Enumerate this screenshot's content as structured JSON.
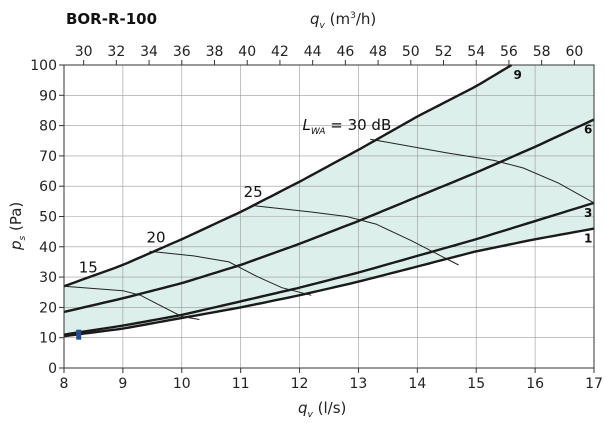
{
  "chart_data": {
    "type": "line",
    "title": "BOR-R-100",
    "xlabel": {
      "symbol": "q",
      "subscript": "v",
      "unit": " (l/s)"
    },
    "x2label": {
      "symbol": "q",
      "subscript": "v",
      "unit_pre": " (m",
      "unit_sup": "3",
      "unit_post": "/h)"
    },
    "ylabel": {
      "symbol": "p",
      "subscript": "s",
      "unit": " (Pa)"
    },
    "xlim": [
      8,
      17
    ],
    "ylim": [
      0,
      100
    ],
    "x2lim": [
      28.8,
      61.2
    ],
    "xticks": [
      8,
      9,
      10,
      11,
      12,
      13,
      14,
      15,
      16,
      17
    ],
    "yticks": [
      0,
      10,
      20,
      30,
      40,
      50,
      60,
      70,
      80,
      90,
      100
    ],
    "x2ticks": [
      30,
      32,
      34,
      36,
      38,
      40,
      42,
      44,
      46,
      48,
      50,
      52,
      54,
      56,
      58,
      60
    ],
    "grid": true,
    "colors": {
      "fill": "#dcefea",
      "curve": "#1a1a1a",
      "grid": "#9a9a9a",
      "marker": "#1f4f8f"
    },
    "series": [
      {
        "name": "1",
        "points": [
          [
            8,
            10.5
          ],
          [
            9,
            13
          ],
          [
            10,
            16.5
          ],
          [
            11,
            20
          ],
          [
            12,
            24
          ],
          [
            13,
            28.5
          ],
          [
            14,
            33.5
          ],
          [
            15,
            38.5
          ],
          [
            16,
            42.5
          ],
          [
            17,
            46
          ]
        ]
      },
      {
        "name": "3",
        "points": [
          [
            8,
            11
          ],
          [
            9,
            14
          ],
          [
            10,
            17.5
          ],
          [
            11,
            22
          ],
          [
            12,
            26.5
          ],
          [
            13,
            31.5
          ],
          [
            14,
            37
          ],
          [
            15,
            42.5
          ],
          [
            16,
            48.5
          ],
          [
            17,
            54.5
          ]
        ]
      },
      {
        "name": "6",
        "points": [
          [
            8,
            18.5
          ],
          [
            9,
            23
          ],
          [
            10,
            28
          ],
          [
            11,
            34
          ],
          [
            12,
            41
          ],
          [
            13,
            48.5
          ],
          [
            14,
            56.5
          ],
          [
            15,
            64.5
          ],
          [
            16,
            73
          ],
          [
            17,
            82
          ]
        ]
      },
      {
        "name": "9",
        "points": [
          [
            8,
            27
          ],
          [
            9,
            34
          ],
          [
            10,
            42.5
          ],
          [
            11,
            51.5
          ],
          [
            12,
            61.5
          ],
          [
            13,
            72
          ],
          [
            14,
            83
          ],
          [
            15,
            93
          ],
          [
            15.6,
            100
          ]
        ]
      }
    ],
    "iso_lines": [
      {
        "label": "15",
        "label_at": [
          8.25,
          31.5
        ],
        "points": [
          [
            8,
            27
          ],
          [
            9.0,
            25.5
          ],
          [
            9.3,
            24
          ],
          [
            9.6,
            21
          ],
          [
            10.0,
            17
          ],
          [
            10.3,
            16
          ]
        ]
      },
      {
        "label": "20",
        "label_at": [
          9.4,
          41.5
        ],
        "points": [
          [
            9.45,
            38.5
          ],
          [
            10.2,
            37
          ],
          [
            10.8,
            35
          ],
          [
            11.3,
            30
          ],
          [
            11.7,
            26.5
          ],
          [
            12.2,
            24
          ]
        ]
      },
      {
        "label": "25",
        "label_at": [
          11.05,
          56.5
        ],
        "points": [
          [
            11.25,
            53.5
          ],
          [
            12.2,
            51.5
          ],
          [
            12.8,
            50
          ],
          [
            13.3,
            47.5
          ],
          [
            13.9,
            42
          ],
          [
            14.4,
            37
          ],
          [
            14.7,
            34
          ]
        ]
      },
      {
        "label": "L_WA = 30 dB",
        "label_at": [
          12.05,
          78.5
        ],
        "points": [
          [
            13.2,
            75.5
          ],
          [
            14.5,
            71
          ],
          [
            15.3,
            68.5
          ],
          [
            15.8,
            66
          ],
          [
            16.4,
            61
          ],
          [
            17.0,
            54.5
          ]
        ]
      }
    ],
    "annotations": {
      "lwa_prefix": "L",
      "lwa_sub": "WA",
      "lwa_suffix": " = 30 dB",
      "iso_15": "15",
      "iso_20": "20",
      "iso_25": "25",
      "curve_1": "1",
      "curve_3": "3",
      "curve_6": "6",
      "curve_9": "9"
    },
    "marker": {
      "x": 8.25,
      "y": 11
    }
  }
}
